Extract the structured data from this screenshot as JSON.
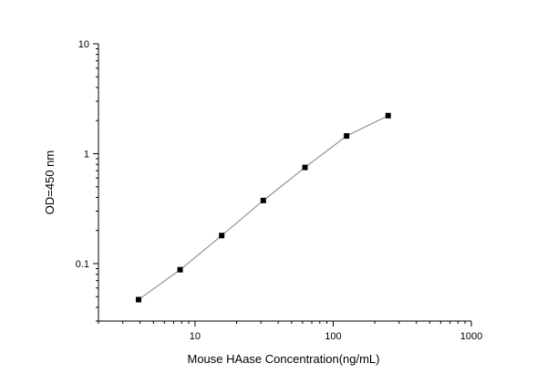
{
  "chart_data": {
    "type": "scatter",
    "title": "",
    "xlabel": "Mouse HAase Concentration(ng/mL)",
    "ylabel": "OD=450 nm",
    "x_scale": "log",
    "y_scale": "log",
    "xlim": [
      2,
      1000
    ],
    "ylim": [
      0.03,
      10
    ],
    "x_ticks": [
      10,
      100,
      1000
    ],
    "x_tick_labels": [
      "10",
      "100",
      "1000"
    ],
    "y_ticks": [
      0.1,
      1,
      10
    ],
    "y_tick_labels": [
      "0.1",
      "1",
      "10"
    ],
    "grid": false,
    "legend": "none",
    "series": [
      {
        "x": [
          3.9,
          7.8,
          15.6,
          31.2,
          62.5,
          125,
          250
        ],
        "y": [
          0.047,
          0.088,
          0.18,
          0.375,
          0.75,
          1.45,
          2.22
        ],
        "marker": "square",
        "line": true,
        "marker_color": "#000000",
        "line_color": "#7f7f7f"
      }
    ]
  }
}
